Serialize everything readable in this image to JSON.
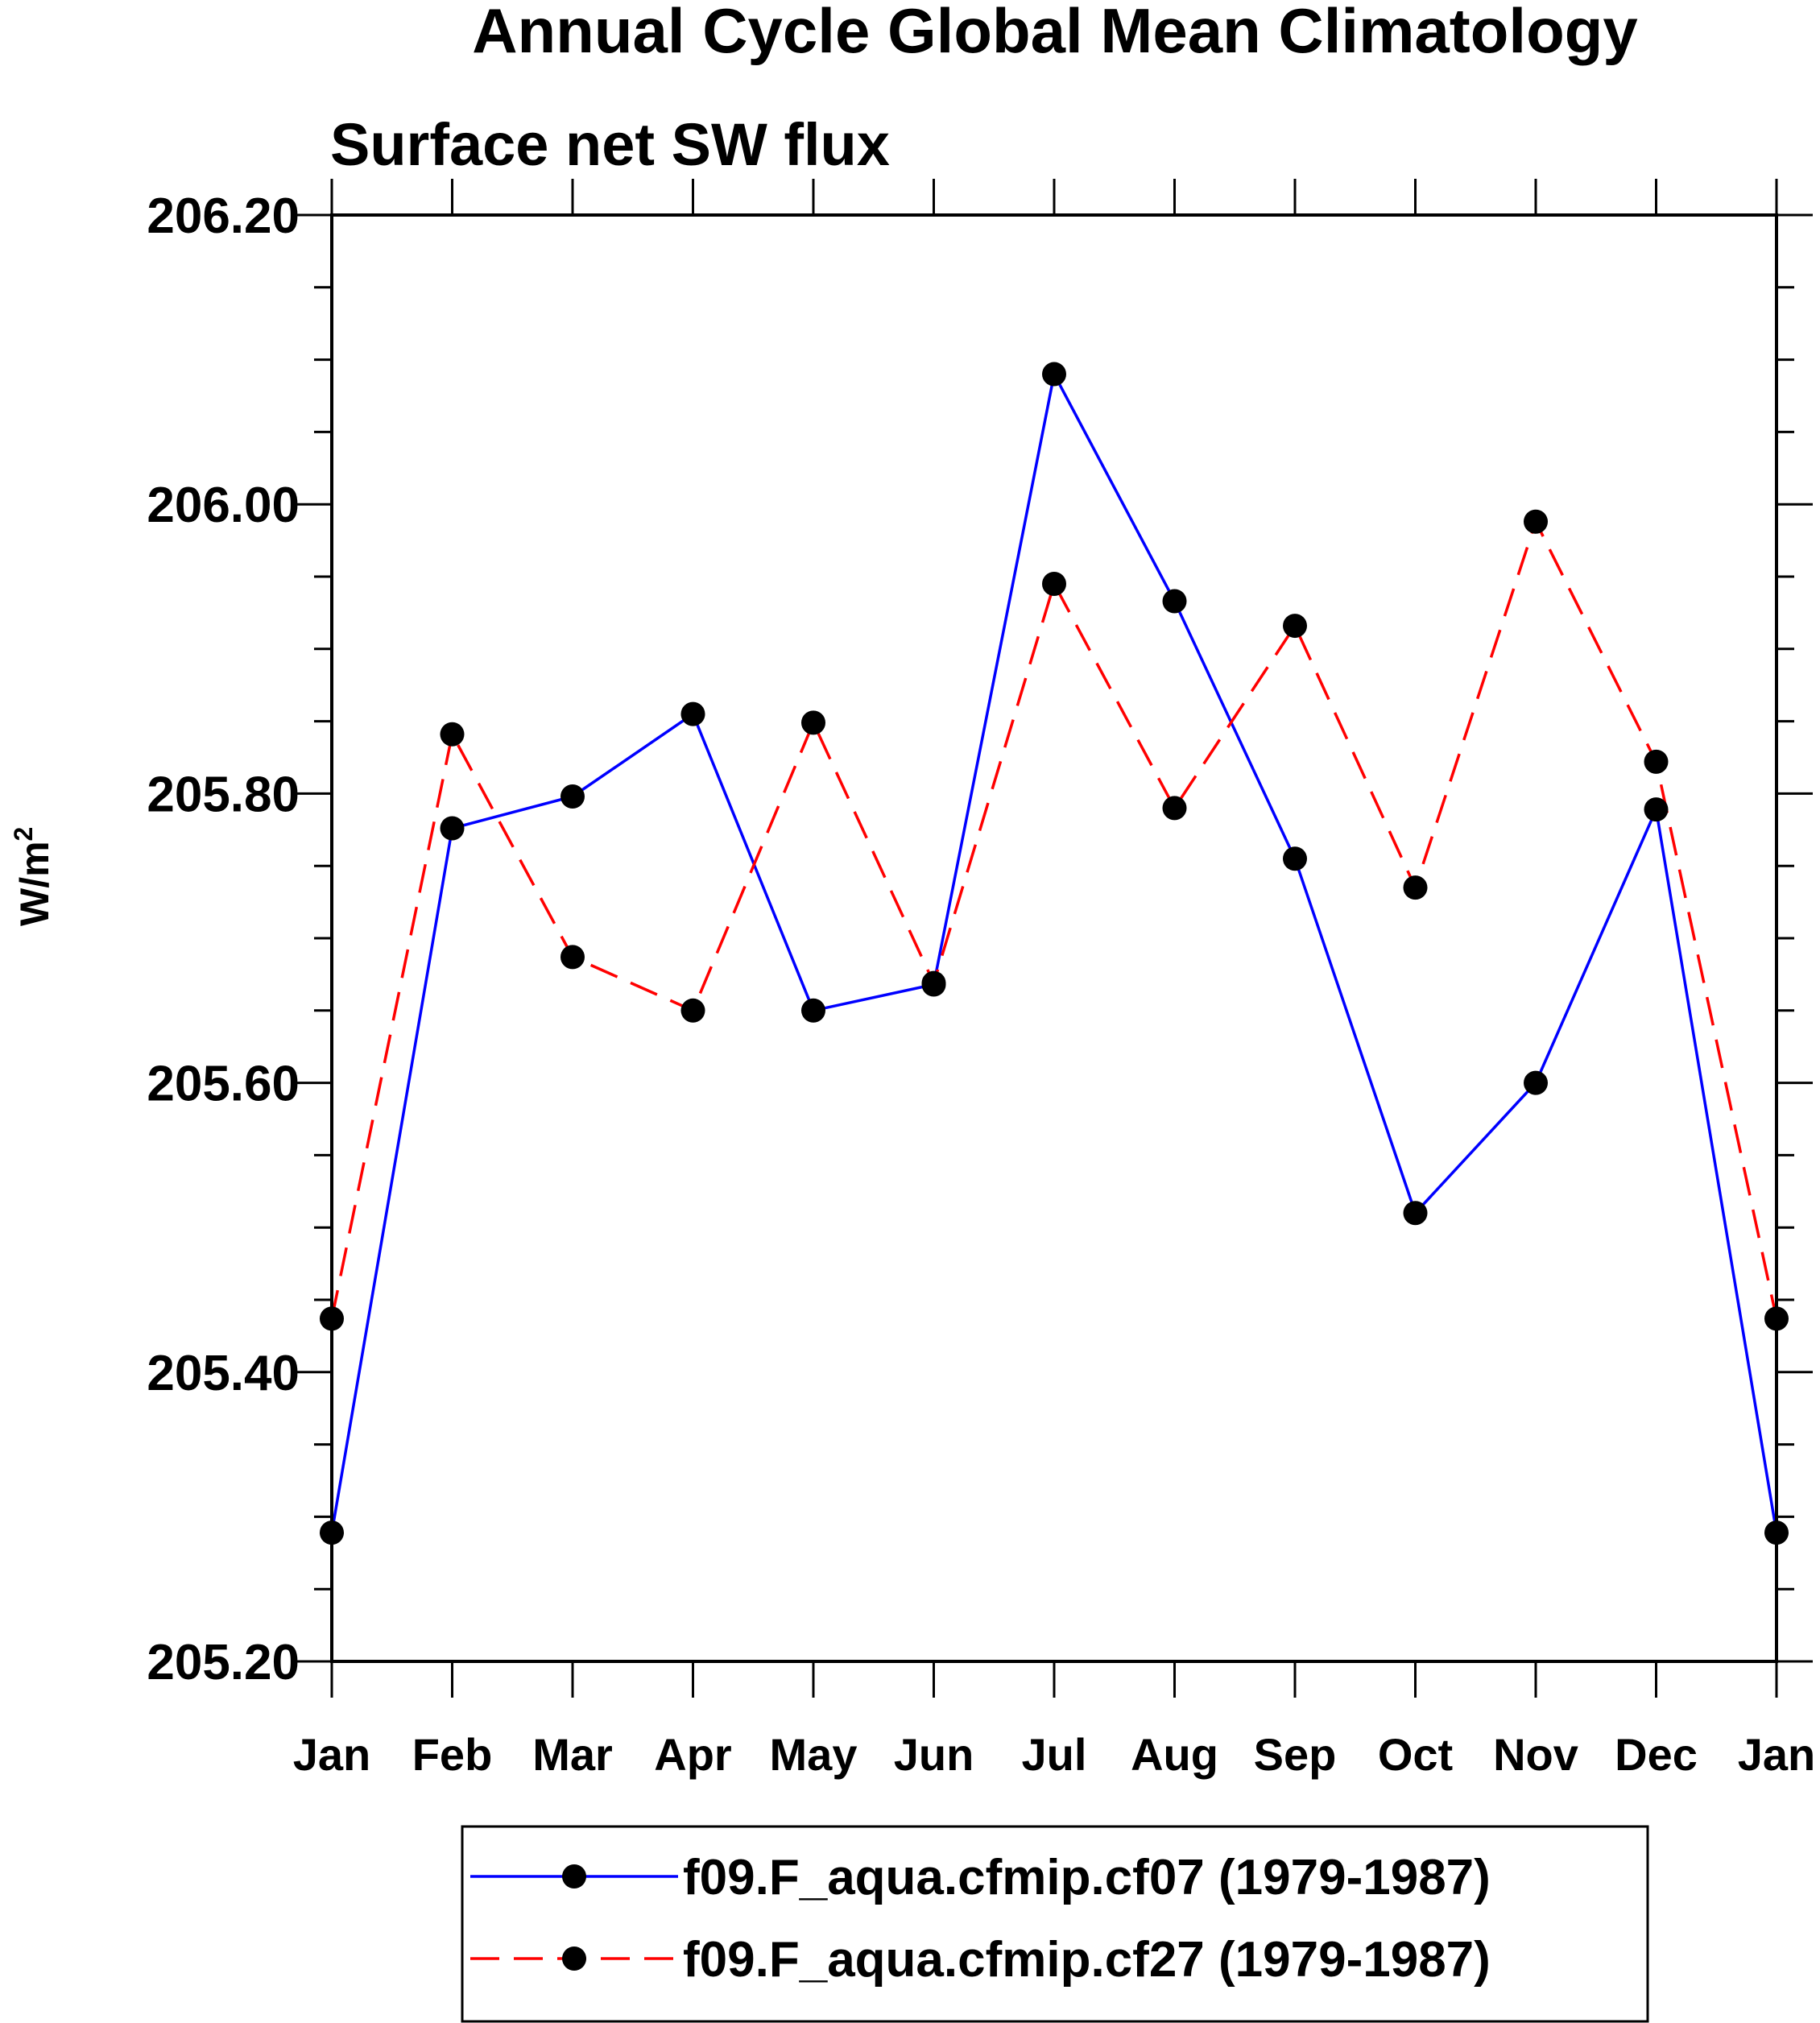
{
  "chart_data": {
    "type": "line",
    "title": "Annual Cycle Global Mean Climatology",
    "subtitle": "Surface net SW flux",
    "ylabel_base": "W/m",
    "ylabel_sup": "2",
    "xlabel": "",
    "categories": [
      "Jan",
      "Feb",
      "Mar",
      "Apr",
      "May",
      "Jun",
      "Jul",
      "Aug",
      "Sep",
      "Oct",
      "Nov",
      "Dec",
      "Jan"
    ],
    "ylim": [
      205.2,
      206.2
    ],
    "yticks": [
      205.2,
      205.4,
      205.6,
      205.8,
      206.0,
      206.2
    ],
    "ytick_labels": [
      "205.20",
      "205.40",
      "205.60",
      "205.80",
      "206.00",
      "206.20"
    ],
    "series": [
      {
        "name": "f09.F_aqua.cfmip.cf07 (1979-1987)",
        "color": "#0000ff",
        "dash": "solid",
        "values": [
          205.289,
          205.776,
          205.798,
          205.855,
          205.65,
          205.668,
          206.09,
          205.933,
          205.755,
          205.51,
          205.6,
          205.789,
          205.289
        ]
      },
      {
        "name": "f09.F_aqua.cfmip.cf27 (1979-1987)",
        "color": "#ff0000",
        "dash": "dashed",
        "values": [
          205.437,
          205.841,
          205.687,
          205.65,
          205.849,
          205.669,
          205.945,
          205.79,
          205.916,
          205.735,
          205.988,
          205.822,
          205.437
        ]
      }
    ],
    "marker_color": "#000000",
    "legend": "bottom"
  }
}
